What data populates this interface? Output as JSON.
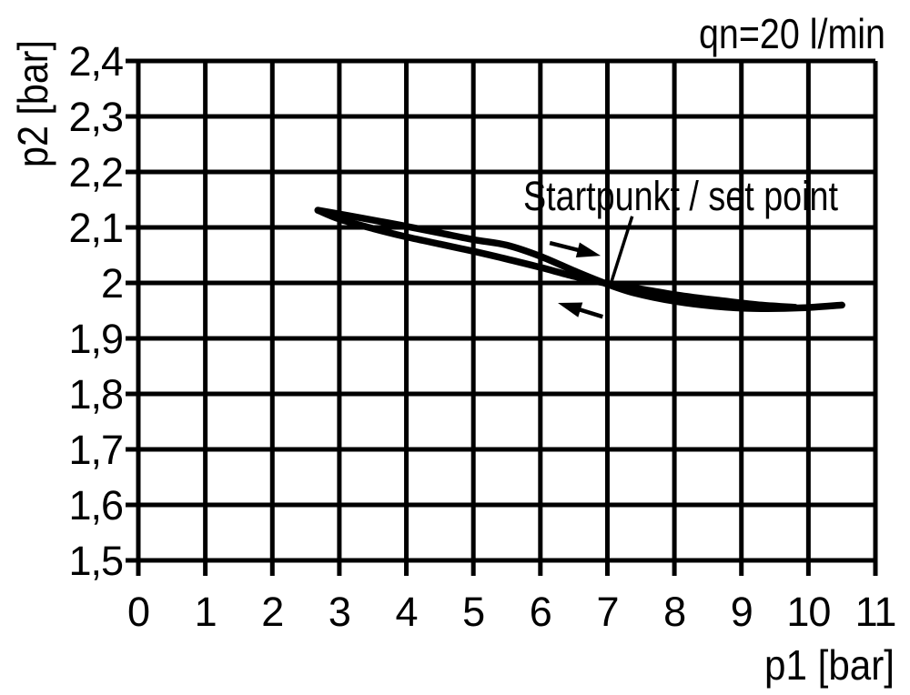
{
  "page": {
    "background": "#ffffff",
    "ink": "#000000"
  },
  "chart_data": {
    "type": "line",
    "flow_label": "qn=20 l/min",
    "xlabel": "p1 [bar]",
    "ylabel": "p2 [bar]",
    "xlim": [
      0,
      11
    ],
    "ylim": [
      1.5,
      2.4
    ],
    "grid": true,
    "x_ticks": [
      {
        "v": 0,
        "label": "0"
      },
      {
        "v": 1,
        "label": "1"
      },
      {
        "v": 2,
        "label": "2"
      },
      {
        "v": 3,
        "label": "3"
      },
      {
        "v": 4,
        "label": "4"
      },
      {
        "v": 5,
        "label": "5"
      },
      {
        "v": 6,
        "label": "6"
      },
      {
        "v": 7,
        "label": "7"
      },
      {
        "v": 8,
        "label": "8"
      },
      {
        "v": 9,
        "label": "9"
      },
      {
        "v": 10,
        "label": "10"
      },
      {
        "v": 11,
        "label": "11"
      }
    ],
    "y_ticks": [
      {
        "v": 2.4,
        "label": "2,4"
      },
      {
        "v": 2.3,
        "label": "2,3"
      },
      {
        "v": 2.2,
        "label": "2,2"
      },
      {
        "v": 2.1,
        "label": "2,1"
      },
      {
        "v": 2.0,
        "label": "2"
      },
      {
        "v": 1.9,
        "label": "1,9"
      },
      {
        "v": 1.8,
        "label": "1,8"
      },
      {
        "v": 1.7,
        "label": "1,7"
      },
      {
        "v": 1.6,
        "label": "1,6"
      },
      {
        "v": 1.5,
        "label": "1,5"
      }
    ],
    "series": [
      {
        "name": "hysteresis-upper-branch",
        "points": [
          [
            2.68,
            2.131
          ],
          [
            3.1,
            2.122
          ],
          [
            3.6,
            2.111
          ],
          [
            4.0,
            2.102
          ],
          [
            4.5,
            2.09
          ],
          [
            5.0,
            2.078
          ],
          [
            5.5,
            2.068
          ],
          [
            6.0,
            2.048
          ],
          [
            6.5,
            2.022
          ],
          [
            6.95,
            2.0
          ],
          [
            7.4,
            1.982
          ],
          [
            8.0,
            1.967
          ],
          [
            8.6,
            1.958
          ],
          [
            9.2,
            1.954
          ],
          [
            9.9,
            1.955
          ],
          [
            10.5,
            1.96
          ]
        ]
      },
      {
        "name": "hysteresis-lower-branch",
        "points": [
          [
            2.68,
            2.131
          ],
          [
            3.0,
            2.115
          ],
          [
            3.5,
            2.098
          ],
          [
            4.0,
            2.083
          ],
          [
            4.5,
            2.07
          ],
          [
            5.0,
            2.057
          ],
          [
            5.5,
            2.043
          ],
          [
            6.0,
            2.028
          ],
          [
            6.5,
            2.012
          ],
          [
            6.95,
            2.0
          ],
          [
            7.5,
            1.989
          ],
          [
            8.1,
            1.977
          ],
          [
            8.7,
            1.968
          ],
          [
            9.3,
            1.96
          ],
          [
            9.8,
            1.956
          ]
        ]
      }
    ],
    "annotation": {
      "text": "Startpunkt / set point",
      "leader": [
        [
          7.37,
          2.12
        ],
        [
          7.05,
          1.998
        ]
      ]
    },
    "set_point": {
      "p1": 7,
      "p2": 2.0
    },
    "arrows": [
      {
        "name": "direction-arrow-right",
        "tail": [
          6.14,
          2.072
        ],
        "tip": [
          6.9,
          2.049
        ]
      },
      {
        "name": "direction-arrow-left",
        "tail": [
          6.93,
          1.939
        ],
        "tip": [
          6.26,
          1.964
        ]
      }
    ]
  }
}
